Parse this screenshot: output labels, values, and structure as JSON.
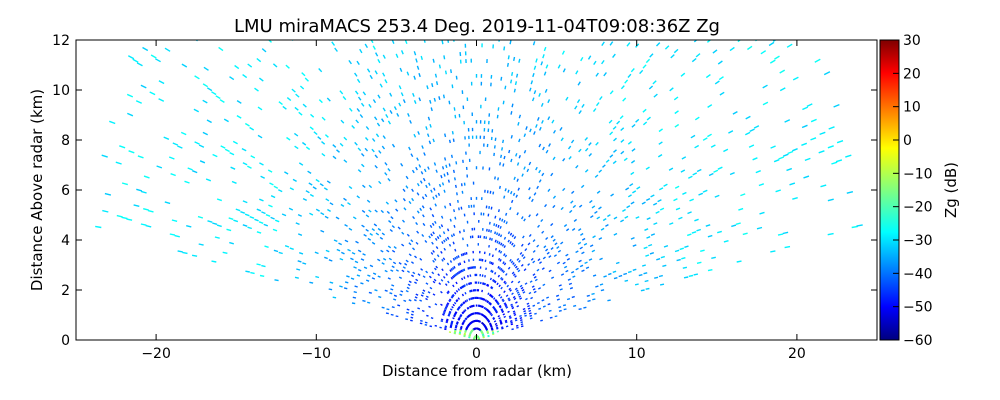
{
  "chart_data": {
    "type": "heatmap",
    "title": "LMU miraMACS 253.4 Deg. 2019-11-04T09:08:36Z  Zg",
    "xlabel": "Distance from radar (km)",
    "ylabel": "Distance Above radar  (km)",
    "xlim": [
      -25,
      25
    ],
    "ylim": [
      0,
      12
    ],
    "xticks": [
      "−20",
      "−10",
      "0",
      "10",
      "20"
    ],
    "xtick_values": [
      -20,
      -10,
      0,
      10,
      20
    ],
    "yticks": [
      "0",
      "2",
      "4",
      "6",
      "8",
      "10",
      "12"
    ],
    "ytick_values": [
      0,
      2,
      4,
      6,
      8,
      10,
      12
    ],
    "colorbar": {
      "label": "Zg (dB)",
      "range": [
        -60,
        30
      ],
      "ticks": [
        "−60",
        "−50",
        "−40",
        "−30",
        "−20",
        "−10",
        "0",
        "10",
        "20",
        "30"
      ],
      "tick_values": [
        -60,
        -50,
        -40,
        -30,
        -20,
        -10,
        0,
        10,
        20,
        30
      ],
      "colormap": "jet"
    },
    "scan": {
      "azimuth_deg": 253.4,
      "elevation_range_deg": [
        10,
        170
      ],
      "max_range_km": 24.5,
      "zg_near_radar_dB": -55,
      "zg_far_range_dB": -28,
      "zg_surface_clutter_dB": -15
    },
    "grid": false
  }
}
